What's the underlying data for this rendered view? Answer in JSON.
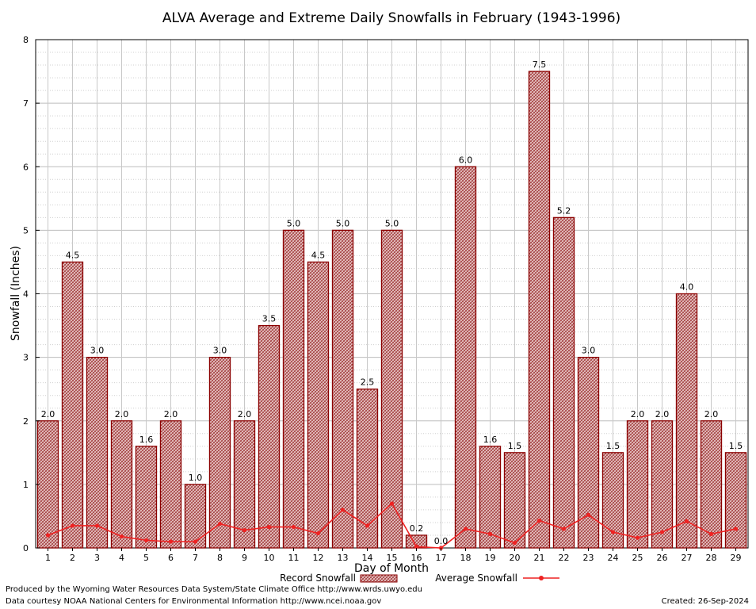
{
  "footer": {
    "credit_line1": "Produced by the Wyoming Water Resources Data System/State Climate Office http://www.wrds.uwyo.edu",
    "credit_line2": "Data courtesy NOAA National Centers for Environmental Information http://www.ncei.noaa.gov",
    "created": "Created:  26-Sep-2024"
  },
  "chart_data": {
    "type": "bar",
    "title": "ALVA Average and Extreme Daily Snowfalls in February (1943-1996)",
    "xlabel": "Day of Month",
    "ylabel": "Snowfall (Inches)",
    "ylim": [
      0,
      8
    ],
    "yticks": [
      0,
      1,
      2,
      3,
      4,
      5,
      6,
      7,
      8
    ],
    "grid": true,
    "legend_position": "bottom",
    "categories": [
      "1",
      "2",
      "3",
      "4",
      "5",
      "6",
      "7",
      "8",
      "9",
      "10",
      "11",
      "12",
      "13",
      "14",
      "15",
      "16",
      "17",
      "18",
      "19",
      "20",
      "21",
      "22",
      "23",
      "24",
      "25",
      "26",
      "27",
      "28",
      "29"
    ],
    "series": [
      {
        "name": "Record Snowfall",
        "kind": "bar",
        "color": "#8b0000",
        "values": [
          2.0,
          4.5,
          3.0,
          2.0,
          1.6,
          2.0,
          1.0,
          3.0,
          2.0,
          3.5,
          5.0,
          4.5,
          5.0,
          2.5,
          5.0,
          0.2,
          0.0,
          6.0,
          1.6,
          1.5,
          7.5,
          5.2,
          3.0,
          1.5,
          2.0,
          2.0,
          4.0,
          2.0,
          1.5
        ],
        "labels": [
          "2.0",
          "4.5",
          "3.0",
          "2.0",
          "1.6",
          "2.0",
          "1.0",
          "3.0",
          "2.0",
          "3.5",
          "5.0",
          "4.5",
          "5.0",
          "2.5",
          "5.0",
          "0.2",
          "0.0",
          "6.0",
          "1.6",
          "1.5",
          "7.5",
          "5.2",
          "3.0",
          "1.5",
          "2.0",
          "2.0",
          "4.0",
          "2.0",
          "1.5"
        ]
      },
      {
        "name": "Average Snowfall",
        "kind": "line",
        "color": "#ee2222",
        "values": [
          0.2,
          0.35,
          0.35,
          0.18,
          0.12,
          0.1,
          0.1,
          0.38,
          0.28,
          0.33,
          0.33,
          0.23,
          0.6,
          0.35,
          0.7,
          0.02,
          0.0,
          0.3,
          0.22,
          0.08,
          0.43,
          0.3,
          0.52,
          0.25,
          0.16,
          0.25,
          0.42,
          0.22,
          0.3
        ]
      }
    ]
  }
}
